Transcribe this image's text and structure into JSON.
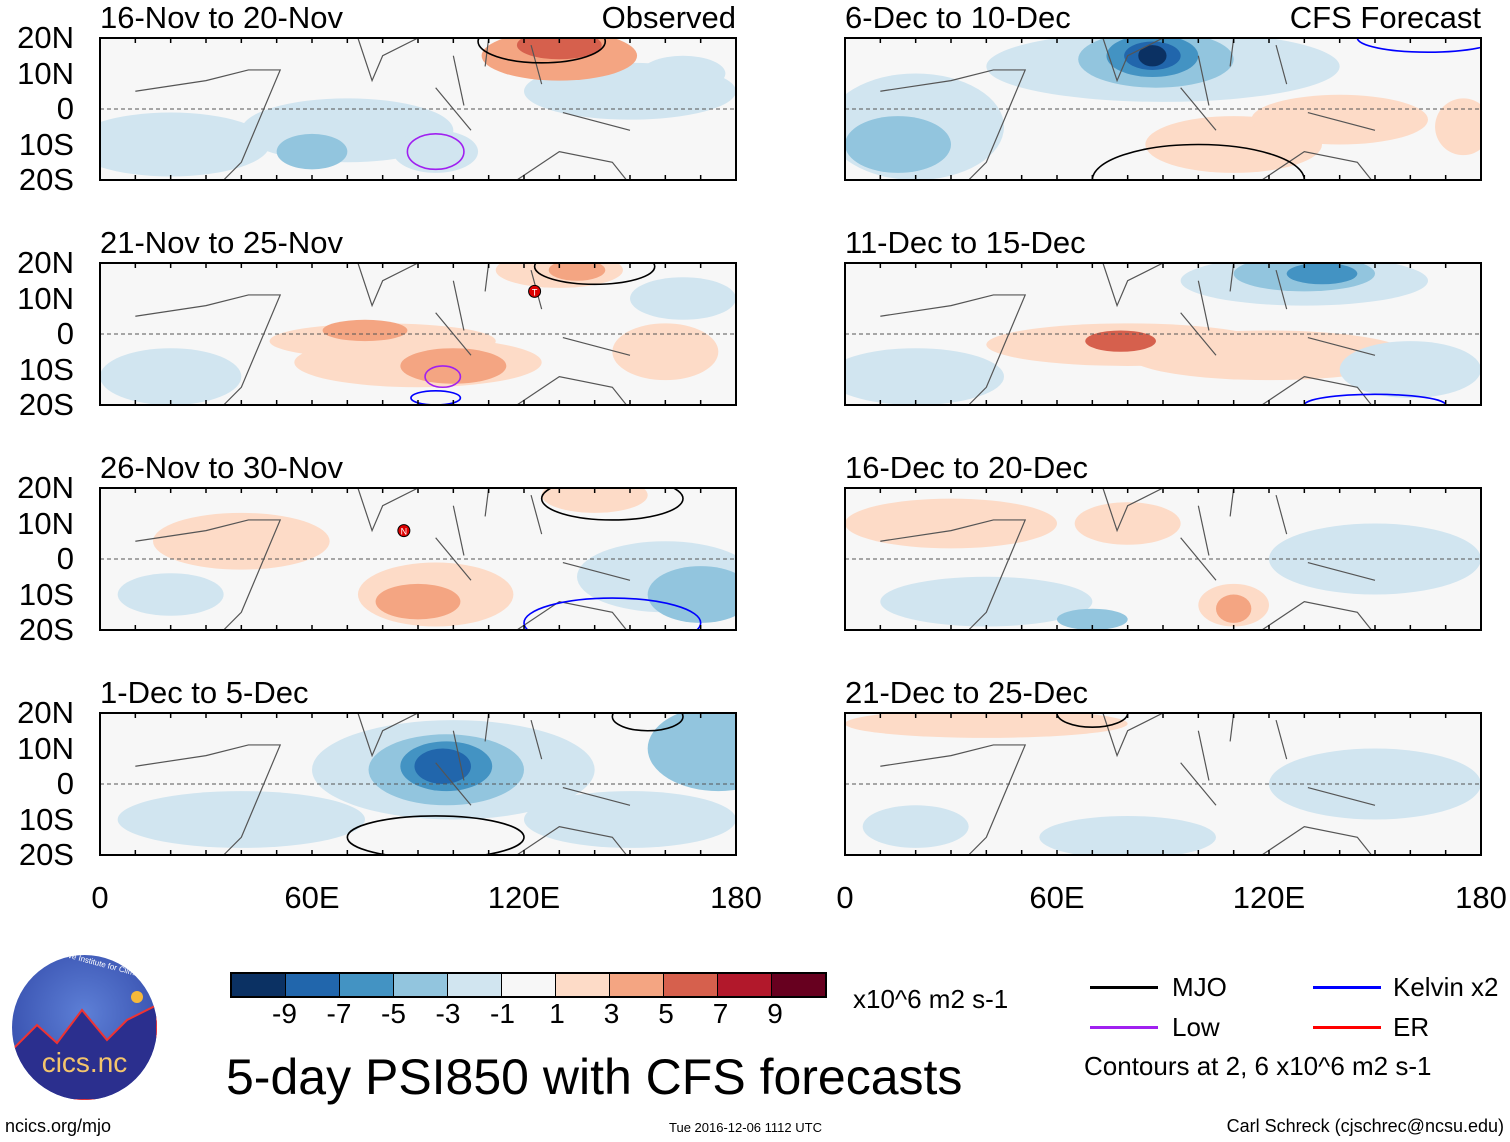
{
  "panels": [
    {
      "title": "16-Nov to 20-Nov",
      "label": "Observed",
      "blobs": [
        [
          20,
          -10,
          28,
          9,
          -1
        ],
        [
          70,
          -6,
          30,
          9,
          -1
        ],
        [
          60,
          -12,
          10,
          5,
          -3
        ],
        [
          150,
          5,
          30,
          8,
          -1
        ],
        [
          130,
          15,
          22,
          7,
          3
        ],
        [
          130,
          18,
          12,
          4,
          5
        ],
        [
          165,
          10,
          12,
          5,
          -1
        ],
        [
          95,
          -12,
          12,
          6,
          -1
        ]
      ],
      "contours": [
        {
          "type": "Low",
          "lon": 95,
          "lat": -12,
          "rx": 8,
          "ry": 5
        },
        {
          "type": "MJO",
          "lon": 125,
          "lat": 19,
          "rx": 18,
          "ry": 6
        }
      ],
      "storms": []
    },
    {
      "title": "21-Nov to 25-Nov",
      "label": "",
      "blobs": [
        [
          20,
          -12,
          20,
          8,
          -1
        ],
        [
          80,
          -2,
          32,
          5,
          1
        ],
        [
          90,
          -8,
          35,
          7,
          1
        ],
        [
          100,
          -9,
          15,
          5,
          3
        ],
        [
          75,
          1,
          12,
          3,
          3
        ],
        [
          130,
          18,
          18,
          5,
          1
        ],
        [
          135,
          18,
          8,
          3,
          3
        ],
        [
          160,
          -5,
          15,
          8,
          1
        ],
        [
          165,
          10,
          15,
          6,
          -1
        ]
      ],
      "contours": [
        {
          "type": "Low",
          "lon": 97,
          "lat": -12,
          "rx": 5,
          "ry": 3
        },
        {
          "type": "Kelvin",
          "lon": 95,
          "lat": -18,
          "rx": 7,
          "ry": 2
        },
        {
          "type": "MJO",
          "lon": 140,
          "lat": 19,
          "rx": 17,
          "ry": 5
        }
      ],
      "storms": [
        {
          "lon": 123,
          "lat": 12,
          "label": "T"
        }
      ]
    },
    {
      "title": "26-Nov to 30-Nov",
      "label": "",
      "blobs": [
        [
          95,
          -10,
          22,
          9,
          1
        ],
        [
          90,
          -12,
          12,
          5,
          3
        ],
        [
          140,
          18,
          15,
          5,
          1
        ],
        [
          160,
          -5,
          25,
          10,
          -1
        ],
        [
          170,
          -10,
          15,
          8,
          -3
        ],
        [
          40,
          5,
          25,
          8,
          1
        ],
        [
          20,
          -10,
          15,
          6,
          -1
        ]
      ],
      "contours": [
        {
          "type": "Kelvin",
          "lon": 145,
          "lat": -18,
          "rx": 25,
          "ry": 7
        },
        {
          "type": "MJO",
          "lon": 145,
          "lat": 17,
          "rx": 20,
          "ry": 6
        }
      ],
      "storms": [
        {
          "lon": 86,
          "lat": 8,
          "label": "N"
        }
      ]
    },
    {
      "title": "1-Dec to 5-Dec",
      "label": "",
      "blobs": [
        [
          100,
          4,
          40,
          14,
          -1
        ],
        [
          98,
          4,
          22,
          10,
          -3
        ],
        [
          98,
          5,
          13,
          7,
          -5
        ],
        [
          97,
          5,
          8,
          5,
          -7
        ],
        [
          175,
          10,
          20,
          12,
          -3
        ],
        [
          150,
          -10,
          30,
          8,
          -1
        ],
        [
          40,
          -10,
          35,
          8,
          -1
        ]
      ],
      "contours": [
        {
          "type": "MJO",
          "lon": 95,
          "lat": -15,
          "rx": 25,
          "ry": 6
        },
        {
          "type": "MJO",
          "lon": 155,
          "lat": 19,
          "rx": 10,
          "ry": 4
        }
      ],
      "storms": []
    },
    {
      "title": "6-Dec to 10-Dec",
      "label": "CFS Forecast",
      "blobs": [
        [
          20,
          -5,
          25,
          15,
          -1
        ],
        [
          15,
          -10,
          15,
          8,
          -3
        ],
        [
          90,
          12,
          50,
          10,
          -1
        ],
        [
          88,
          14,
          22,
          8,
          -3
        ],
        [
          87,
          15,
          13,
          6,
          -5
        ],
        [
          87,
          15,
          8,
          4,
          -7
        ],
        [
          87,
          15,
          4,
          3,
          -9
        ],
        [
          110,
          -10,
          25,
          8,
          1
        ],
        [
          140,
          -3,
          25,
          7,
          1
        ],
        [
          175,
          -5,
          8,
          8,
          1
        ]
      ],
      "contours": [
        {
          "type": "MJO",
          "lon": 100,
          "lat": -20,
          "rx": 30,
          "ry": 10
        },
        {
          "type": "Kelvin",
          "lon": 165,
          "lat": 20,
          "rx": 20,
          "ry": 4
        }
      ],
      "storms": []
    },
    {
      "title": "11-Dec to 15-Dec",
      "label": "",
      "blobs": [
        [
          80,
          -3,
          40,
          6,
          1
        ],
        [
          120,
          -6,
          40,
          7,
          1
        ],
        [
          78,
          -2,
          10,
          3,
          5
        ],
        [
          130,
          15,
          35,
          7,
          -1
        ],
        [
          130,
          17,
          20,
          5,
          -3
        ],
        [
          135,
          17,
          10,
          3,
          -5
        ],
        [
          20,
          -12,
          25,
          8,
          -1
        ],
        [
          160,
          -10,
          20,
          8,
          -1
        ]
      ],
      "contours": [
        {
          "type": "Kelvin",
          "lon": 150,
          "lat": -20,
          "rx": 20,
          "ry": 3
        }
      ],
      "storms": []
    },
    {
      "title": "16-Dec to 20-Dec",
      "label": "",
      "blobs": [
        [
          30,
          10,
          30,
          7,
          1
        ],
        [
          80,
          10,
          15,
          6,
          1
        ],
        [
          110,
          -13,
          10,
          6,
          1
        ],
        [
          110,
          -14,
          5,
          4,
          3
        ],
        [
          40,
          -12,
          30,
          7,
          -1
        ],
        [
          150,
          0,
          30,
          10,
          -1
        ],
        [
          70,
          -17,
          10,
          3,
          -3
        ]
      ],
      "contours": [],
      "storms": []
    },
    {
      "title": "21-Dec to 25-Dec",
      "label": "",
      "blobs": [
        [
          40,
          17,
          40,
          4,
          1
        ],
        [
          80,
          -15,
          25,
          6,
          -1
        ],
        [
          150,
          0,
          30,
          10,
          -1
        ],
        [
          20,
          -12,
          15,
          6,
          -1
        ]
      ],
      "contours": [
        {
          "type": "MJO",
          "lon": 70,
          "lat": 20,
          "rx": 10,
          "ry": 4
        }
      ],
      "storms": []
    }
  ],
  "y_ticks": [
    "20N",
    "10N",
    "0",
    "10S",
    "20S"
  ],
  "x_ticks": [
    "0",
    "60E",
    "120E",
    "180"
  ],
  "colorbar": {
    "colors": [
      "#0b3163",
      "#2166ac",
      "#4393c3",
      "#92c5de",
      "#d1e5f0",
      "#f7f7f7",
      "#fddbc7",
      "#f4a582",
      "#d6604d",
      "#b2182b",
      "#67001f"
    ],
    "labels": [
      "-9",
      "-7",
      "-5",
      "-3",
      "-1",
      "1",
      "3",
      "5",
      "7",
      "9"
    ],
    "units": "x10^6 m2 s-1"
  },
  "legend": {
    "items": [
      {
        "label": "MJO",
        "color": "#000000"
      },
      {
        "label": "Kelvin x2",
        "color": "#0000ff"
      },
      {
        "label": "Low",
        "color": "#a020f0"
      },
      {
        "label": "ER",
        "color": "#ff0000"
      }
    ],
    "note": "Contours at 2, 6 x10^6 m2 s-1"
  },
  "title": "5-day PSI850 with CFS forecasts",
  "logo_text": "cics.nc",
  "logo_ring": "Cooperative Institute for Climate and Satellites",
  "footer": {
    "url": "ncics.org/mjo",
    "timestamp": "Tue 2016-12-06 1112 UTC",
    "author": "Carl Schreck (cjschrec@ncsu.edu)"
  }
}
